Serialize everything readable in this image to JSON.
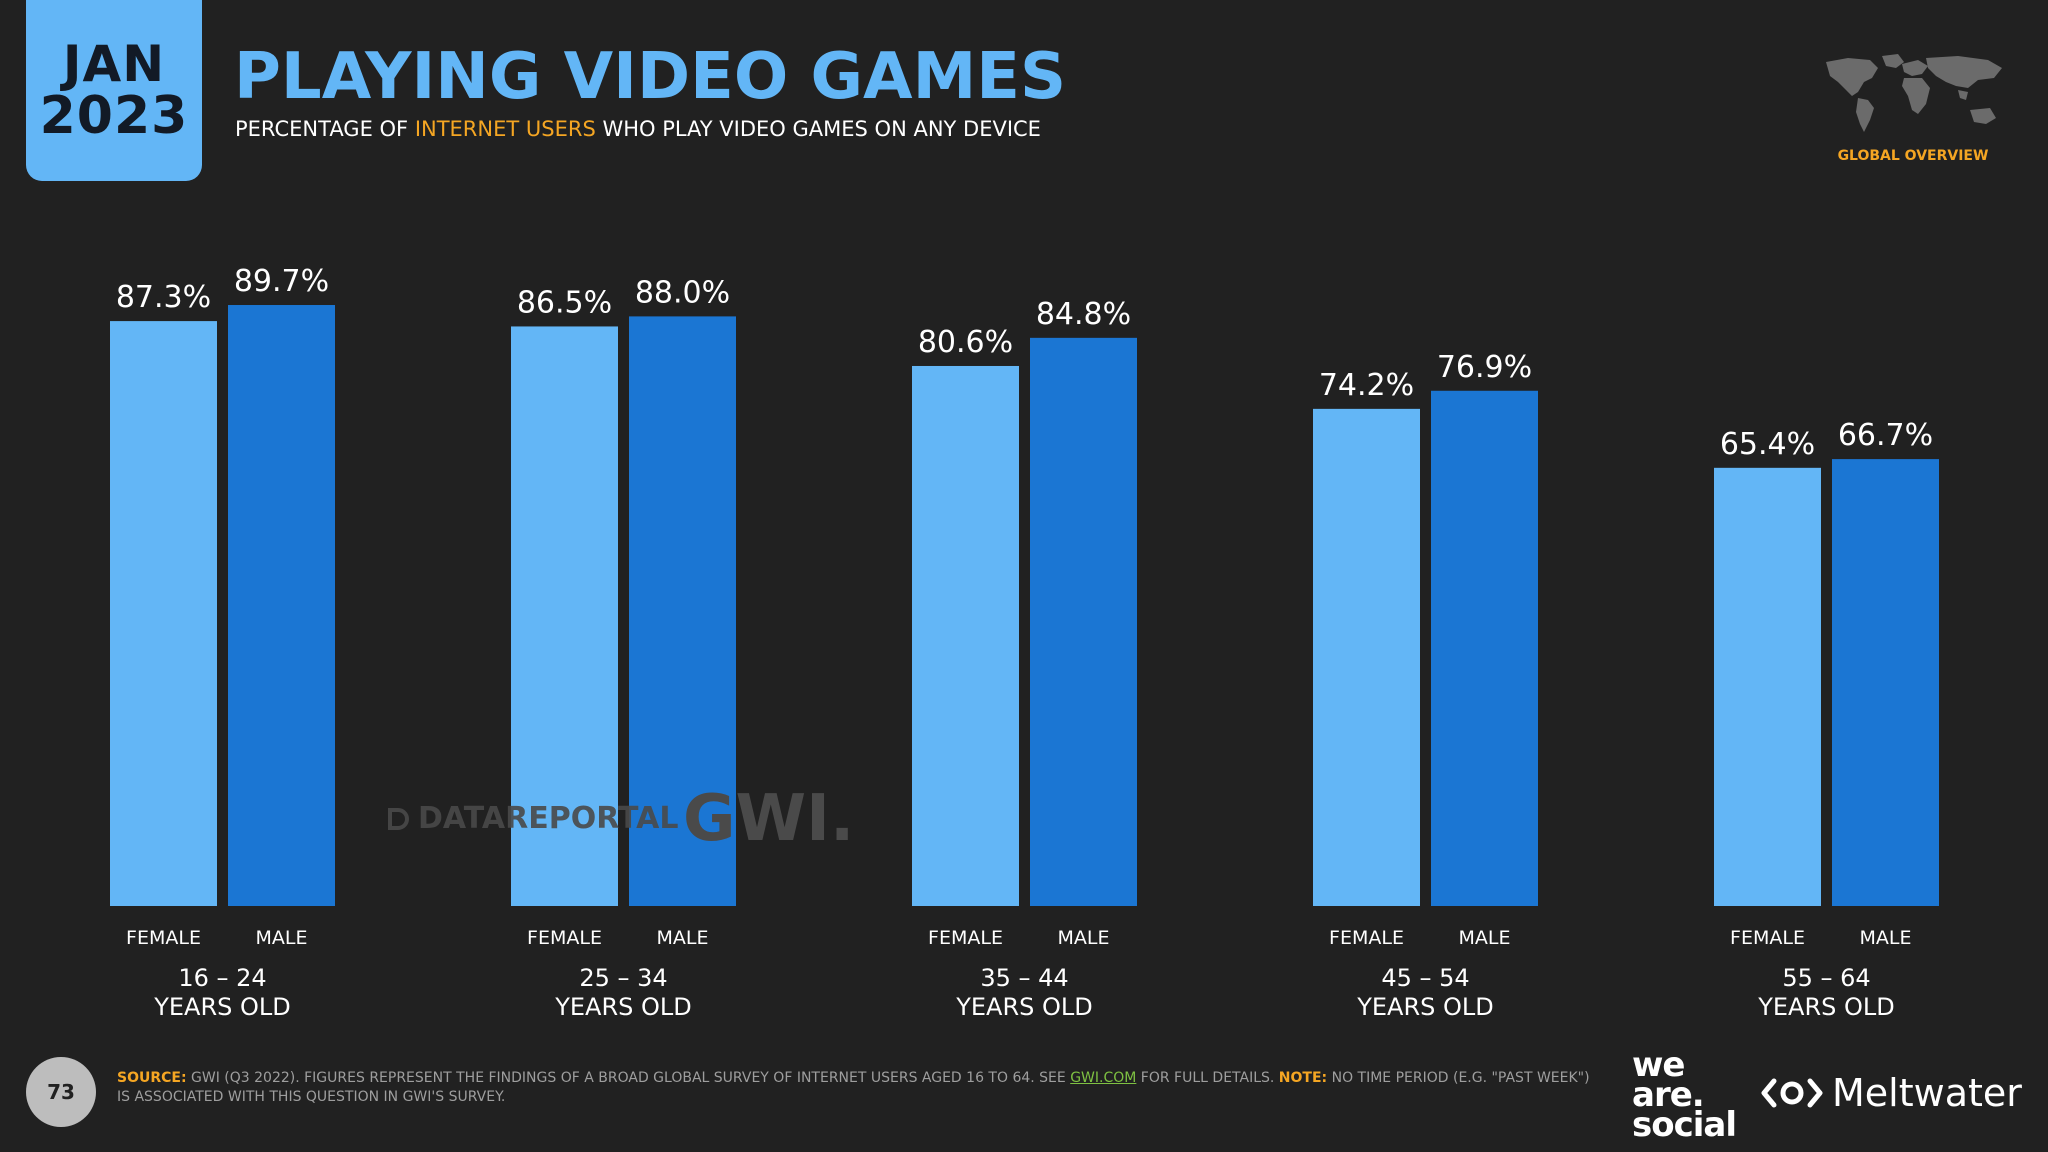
{
  "header": {
    "badge_month": "JAN",
    "badge_year": "2023",
    "title": "PLAYING VIDEO GAMES",
    "subtitle_pre": "PERCENTAGE OF ",
    "subtitle_highlight": "INTERNET USERS",
    "subtitle_post": " WHO PLAY VIDEO GAMES ON ANY DEVICE",
    "region_label": "GLOBAL OVERVIEW"
  },
  "watermarks": {
    "datareportal": "DATAREPORTAL",
    "gwi": "GWI."
  },
  "footer": {
    "page_number": "73",
    "source_label": "SOURCE:",
    "source_text_1": " GWI (Q3 2022). FIGURES REPRESENT THE FINDINGS OF A BROAD GLOBAL SURVEY OF INTERNET USERS AGED 16 TO 64. SEE ",
    "source_link": "GWI.COM",
    "source_text_2": " FOR FULL DETAILS. ",
    "note_label": "NOTE:",
    "note_text": " NO TIME PERIOD (E.G. \"PAST WEEK\") IS ASSOCIATED WITH THIS QUESTION IN GWI'S SURVEY.",
    "brand_1_line1": "we",
    "brand_1_line2": "are.",
    "brand_1_line3": "social",
    "brand_2": "Meltwater"
  },
  "colors": {
    "female": "#63b6f6",
    "male": "#1b76d3",
    "accent": "#f5a623",
    "background": "#212121"
  },
  "chart_data": {
    "type": "bar",
    "categories": [
      {
        "line1": "16 – 24",
        "line2": "YEARS OLD"
      },
      {
        "line1": "25 – 34",
        "line2": "YEARS OLD"
      },
      {
        "line1": "35 – 44",
        "line2": "YEARS OLD"
      },
      {
        "line1": "45 – 54",
        "line2": "YEARS OLD"
      },
      {
        "line1": "55 – 64",
        "line2": "YEARS OLD"
      }
    ],
    "series": [
      {
        "name": "FEMALE",
        "values": [
          87.3,
          86.5,
          80.6,
          74.2,
          65.4
        ],
        "labels": [
          "87.3%",
          "86.5%",
          "80.6%",
          "74.2%",
          "65.4%"
        ]
      },
      {
        "name": "MALE",
        "values": [
          89.7,
          88.0,
          84.8,
          76.9,
          66.7
        ],
        "labels": [
          "89.7%",
          "88.0%",
          "84.8%",
          "76.9%",
          "66.7%"
        ]
      }
    ],
    "ylim": [
      0,
      100
    ],
    "grid": false,
    "legend": "none"
  }
}
